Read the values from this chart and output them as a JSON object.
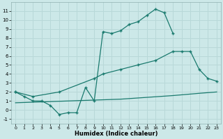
{
  "xlabel": "Humidex (Indice chaleur)",
  "bg_color": "#cce8e8",
  "grid_color": "#b8d8d8",
  "line_color": "#1a7a6e",
  "xlim": [
    -0.5,
    23.5
  ],
  "ylim": [
    -1.5,
    12
  ],
  "xticks": [
    0,
    1,
    2,
    3,
    4,
    5,
    6,
    7,
    8,
    9,
    10,
    11,
    12,
    13,
    14,
    15,
    16,
    17,
    18,
    19,
    20,
    21,
    22,
    23
  ],
  "yticks": [
    -1,
    0,
    1,
    2,
    3,
    4,
    5,
    6,
    7,
    8,
    9,
    10,
    11
  ],
  "curve1_x": [
    0,
    1,
    2,
    3,
    4,
    5,
    6,
    7,
    8,
    9,
    10,
    11,
    12,
    13,
    14,
    15,
    16,
    17,
    18
  ],
  "curve1_y": [
    2,
    1.5,
    1.0,
    1.0,
    0.5,
    -0.5,
    -0.3,
    -0.3,
    2.5,
    1.0,
    8.7,
    8.5,
    8.8,
    9.5,
    9.8,
    10.5,
    11.2,
    10.8,
    8.5
  ],
  "curve2_x": [
    0,
    2,
    5,
    9,
    10,
    12,
    14,
    16,
    18,
    19,
    20,
    21,
    22,
    23
  ],
  "curve2_y": [
    2,
    1.5,
    2.0,
    3.5,
    4.0,
    4.5,
    5.0,
    5.5,
    6.5,
    6.5,
    6.5,
    4.5,
    3.5,
    3.2
  ],
  "curve3_x": [
    0,
    3,
    6,
    9,
    12,
    15,
    18,
    21,
    23
  ],
  "curve3_y": [
    0.8,
    0.9,
    1.0,
    1.1,
    1.2,
    1.4,
    1.6,
    1.85,
    2.0
  ]
}
